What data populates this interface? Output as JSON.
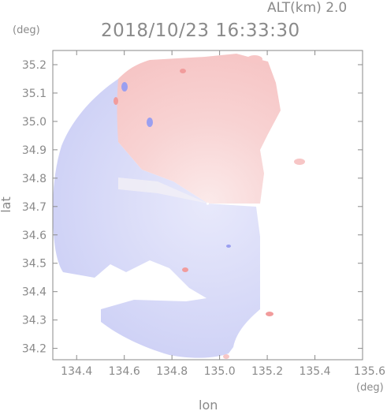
{
  "header": {
    "altitude_label": "ALT(km) 2.0",
    "timestamp": "2018/10/23 16:33:30"
  },
  "chart_data": {
    "type": "heatmap",
    "title": "2018/10/23 16:33:30",
    "subtitle": "ALT(km) 2.0",
    "xlabel": "lon",
    "ylabel": "lat",
    "x_unit": "(deg)",
    "y_unit": "(deg)",
    "xlim": [
      134.3,
      135.6
    ],
    "ylim": [
      34.16,
      35.25
    ],
    "x_ticks": [
      134.4,
      134.6,
      134.8,
      135.0,
      135.2,
      135.4,
      135.6
    ],
    "x_tick_labels": [
      "134.4",
      "134.6",
      "134.8",
      "135.0",
      "135.2",
      "135.4",
      "135.6"
    ],
    "y_ticks": [
      34.2,
      34.3,
      34.4,
      34.5,
      34.6,
      34.7,
      34.8,
      34.9,
      35.0,
      35.1,
      35.2
    ],
    "y_tick_labels": [
      "34.2",
      "34.3",
      "34.4",
      "34.5",
      "34.6",
      "34.7",
      "34.8",
      "34.9",
      "35.0",
      "35.1",
      "35.2"
    ],
    "radar_center": {
      "lon": 134.95,
      "lat": 34.71
    },
    "grid": false,
    "colors": {
      "positive": "#f7c6c6",
      "negative": "#d2d4f7",
      "axis": "#8a8a8a"
    }
  }
}
